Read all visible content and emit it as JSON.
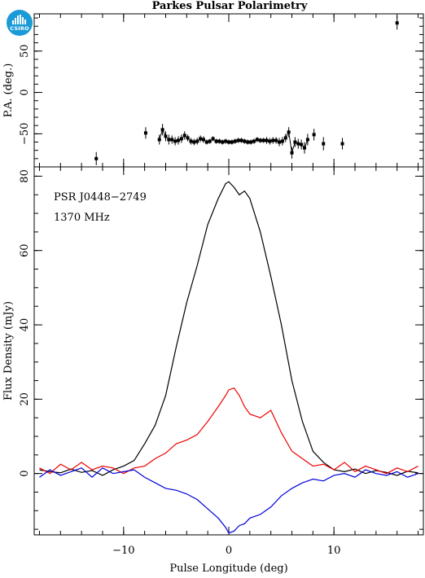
{
  "logo": {
    "text": "CSIRO"
  },
  "title": "Parkes Pulsar Polarimetry",
  "chart_data": [
    {
      "type": "scatter",
      "panel": "position-angle",
      "ylabel": "P.A. (deg.)",
      "xlim": [
        -18.5,
        18.5
      ],
      "ylim": [
        -90,
        95
      ],
      "yticks": [
        -50,
        0,
        50
      ],
      "yticklabels": [
        "−50",
        "0",
        "50"
      ],
      "points": [
        {
          "x": -12.6,
          "y": -80,
          "err": 8
        },
        {
          "x": -7.9,
          "y": -49,
          "err": 7
        },
        {
          "x": -6.6,
          "y": -57,
          "err": 6
        },
        {
          "x": -6.3,
          "y": -45,
          "err": 7
        },
        {
          "x": -6.0,
          "y": -53,
          "err": 6
        },
        {
          "x": -5.7,
          "y": -57,
          "err": 6
        },
        {
          "x": -5.4,
          "y": -57,
          "err": 5
        },
        {
          "x": -5.1,
          "y": -59,
          "err": 5
        },
        {
          "x": -4.8,
          "y": -58,
          "err": 5
        },
        {
          "x": -4.5,
          "y": -56,
          "err": 5
        },
        {
          "x": -4.2,
          "y": -52,
          "err": 5
        },
        {
          "x": -3.9,
          "y": -55,
          "err": 4
        },
        {
          "x": -3.6,
          "y": -59,
          "err": 4
        },
        {
          "x": -3.3,
          "y": -60,
          "err": 4
        },
        {
          "x": -3.0,
          "y": -59,
          "err": 4
        },
        {
          "x": -2.7,
          "y": -56,
          "err": 4
        },
        {
          "x": -2.4,
          "y": -57,
          "err": 4
        },
        {
          "x": -2.1,
          "y": -60,
          "err": 3
        },
        {
          "x": -1.8,
          "y": -59,
          "err": 3
        },
        {
          "x": -1.5,
          "y": -56,
          "err": 3
        },
        {
          "x": -1.2,
          "y": -59,
          "err": 3
        },
        {
          "x": -0.9,
          "y": -59,
          "err": 3
        },
        {
          "x": -0.6,
          "y": -60,
          "err": 3
        },
        {
          "x": -0.3,
          "y": -59,
          "err": 3
        },
        {
          "x": 0.0,
          "y": -60,
          "err": 3
        },
        {
          "x": 0.3,
          "y": -60,
          "err": 3
        },
        {
          "x": 0.6,
          "y": -59,
          "err": 3
        },
        {
          "x": 0.9,
          "y": -58,
          "err": 3
        },
        {
          "x": 1.2,
          "y": -58,
          "err": 3
        },
        {
          "x": 1.5,
          "y": -59,
          "err": 3
        },
        {
          "x": 1.8,
          "y": -60,
          "err": 3
        },
        {
          "x": 2.1,
          "y": -60,
          "err": 3
        },
        {
          "x": 2.4,
          "y": -59,
          "err": 3
        },
        {
          "x": 2.7,
          "y": -57,
          "err": 3
        },
        {
          "x": 3.0,
          "y": -58,
          "err": 3
        },
        {
          "x": 3.3,
          "y": -58,
          "err": 3
        },
        {
          "x": 3.6,
          "y": -58,
          "err": 4
        },
        {
          "x": 3.9,
          "y": -59,
          "err": 4
        },
        {
          "x": 4.2,
          "y": -58,
          "err": 4
        },
        {
          "x": 4.5,
          "y": -58,
          "err": 4
        },
        {
          "x": 4.8,
          "y": -60,
          "err": 5
        },
        {
          "x": 5.1,
          "y": -59,
          "err": 5
        },
        {
          "x": 5.4,
          "y": -55,
          "err": 5
        },
        {
          "x": 5.7,
          "y": -48,
          "err": 6
        },
        {
          "x": 6.0,
          "y": -73,
          "err": 7
        },
        {
          "x": 6.3,
          "y": -60,
          "err": 6
        },
        {
          "x": 6.6,
          "y": -62,
          "err": 6
        },
        {
          "x": 6.9,
          "y": -63,
          "err": 6
        },
        {
          "x": 7.2,
          "y": -67,
          "err": 7
        },
        {
          "x": 7.5,
          "y": -57,
          "err": 7
        },
        {
          "x": 8.1,
          "y": -51,
          "err": 7
        },
        {
          "x": 9.0,
          "y": -62,
          "err": 8
        },
        {
          "x": 10.8,
          "y": -62,
          "err": 7
        },
        {
          "x": 16.0,
          "y": 84,
          "err": 8
        }
      ]
    },
    {
      "type": "line",
      "panel": "flux",
      "xlabel": "Pulse Longitude (deg)",
      "ylabel": "Flux Density (mJy)",
      "xlim": [
        -18.5,
        18.5
      ],
      "ylim": [
        -16.5,
        82.5
      ],
      "xticks": [
        -10,
        0,
        10
      ],
      "xticklabels": [
        "−10",
        "0",
        "10"
      ],
      "yticks": [
        0,
        20,
        40,
        60,
        80
      ],
      "yticklabels": [
        "0",
        "20",
        "40",
        "60",
        "80"
      ],
      "annotations": [
        "PSR J0448−2749",
        "1370 MHz"
      ],
      "x": [
        -18,
        -17,
        -16,
        -15,
        -14,
        -13,
        -12,
        -11,
        -10,
        -9,
        -8,
        -7,
        -6,
        -5,
        -4,
        -3,
        -2,
        -1,
        -0.3,
        0,
        0.5,
        1,
        1.5,
        2,
        3,
        4,
        5,
        6,
        7,
        8,
        9,
        10,
        11,
        12,
        13,
        14,
        15,
        16,
        17,
        18
      ],
      "series": [
        {
          "color": "#000000",
          "values": [
            1.0,
            0.5,
            0.2,
            1.2,
            0.3,
            0.8,
            -0.5,
            1.0,
            2.0,
            3.5,
            8.0,
            13.0,
            21.0,
            34.0,
            46.0,
            56.0,
            67.0,
            74.0,
            78.0,
            78.5,
            77.0,
            75.0,
            76.0,
            74.0,
            65.0,
            53.0,
            40.0,
            25.0,
            14.0,
            6.0,
            3.0,
            1.0,
            0.5,
            1.2,
            0.0,
            0.8,
            0.3,
            -0.5,
            0.6,
            0.2
          ]
        },
        {
          "color": "#ee0000",
          "values": [
            1.5,
            0.0,
            2.5,
            1.0,
            3.0,
            1.0,
            2.0,
            1.5,
            0.0,
            1.5,
            2.0,
            4.0,
            5.5,
            8.0,
            9.0,
            10.5,
            14.0,
            18.0,
            21.0,
            22.5,
            23.0,
            21.0,
            18.0,
            16.0,
            15.0,
            17.0,
            11.0,
            6.0,
            4.0,
            2.0,
            2.5,
            1.0,
            3.0,
            0.5,
            2.0,
            1.0,
            0.0,
            1.5,
            0.5,
            2.0
          ]
        },
        {
          "color": "#0000dd",
          "values": [
            -1.0,
            1.0,
            -0.5,
            0.5,
            1.5,
            -1.0,
            1.5,
            0.0,
            0.5,
            1.0,
            -1.0,
            -2.5,
            -4.0,
            -4.5,
            -5.5,
            -7.0,
            -9.5,
            -12.0,
            -14.5,
            -16.0,
            -15.5,
            -14.0,
            -13.5,
            -12.0,
            -11.0,
            -9.0,
            -6.0,
            -4.0,
            -2.5,
            -1.5,
            -2.0,
            -0.5,
            0.0,
            -1.0,
            1.0,
            0.0,
            -0.5,
            0.5,
            -1.0,
            0.0
          ]
        }
      ]
    }
  ]
}
